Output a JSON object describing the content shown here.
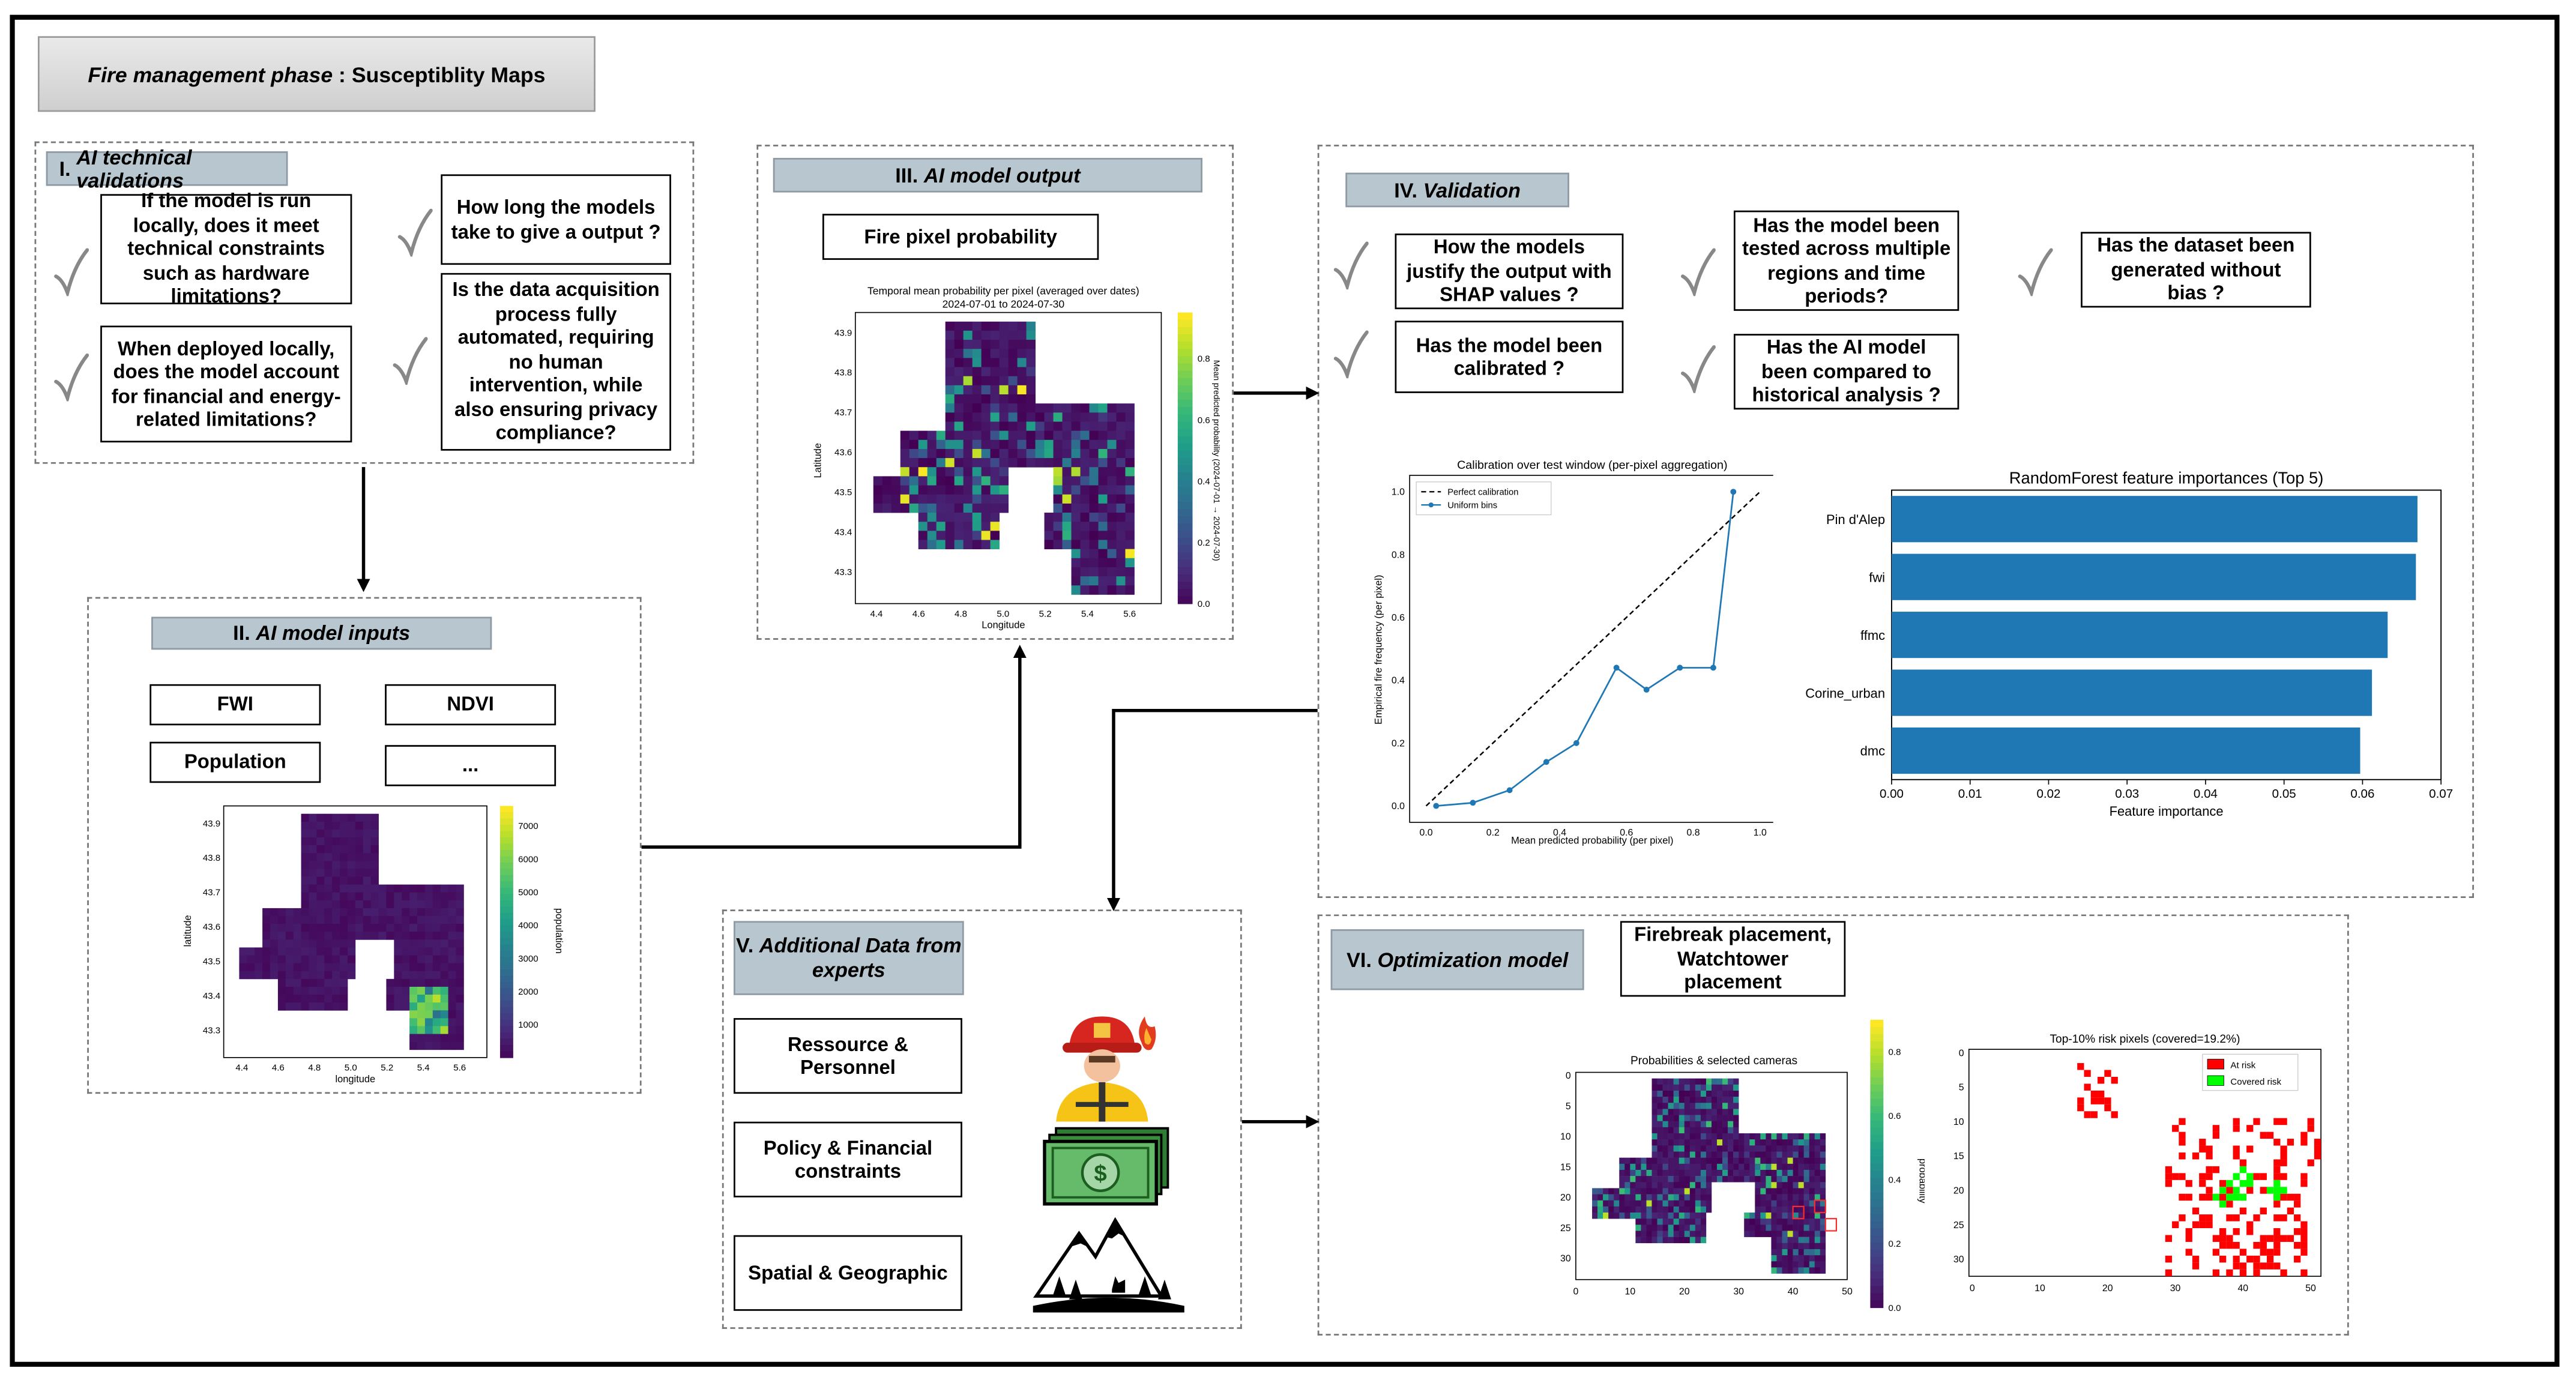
{
  "title": {
    "italic": "Fire management phase",
    "rest": " : Susceptiblity Maps"
  },
  "sections": {
    "s1": {
      "num": "I.",
      "name": "AI technical validations",
      "q1": "If the model is run locally, does it meet technical constraints such as hardware limitations?",
      "q2": "How long the models take to give a output ?",
      "q3": "When deployed locally, does the model account for financial and energy-related limitations?",
      "q4": "Is the data acquisition process fully automated, requiring no human intervention, while also ensuring privacy compliance?"
    },
    "s2": {
      "num": "II.",
      "name": "AI model inputs",
      "b1": "FWI",
      "b2": "NDVI",
      "b3": "Population",
      "b4": "..."
    },
    "s3": {
      "num": "III.",
      "name": "AI model output",
      "box": "Fire pixel probability"
    },
    "s4": {
      "num": "IV.",
      "name": "Validation",
      "q1": "How the models justify the output with SHAP values ?",
      "q2": "Has the model been tested across multiple regions and time periods?",
      "q3": "Has the dataset been generated without bias ?",
      "q4": "Has the model been calibrated ?",
      "q5": "Has the AI model been compared to historical analysis ?"
    },
    "s5": {
      "num": "V.",
      "name": "Additional Data from experts",
      "b1": "Ressource & Personnel",
      "b2": "Policy & Financial constraints",
      "b3": "Spatial & Geographic"
    },
    "s6": {
      "num": "VI.",
      "name": "Optimization model",
      "box": "Firebreak placement, Watchtower placement"
    }
  },
  "icons": [
    "checkmark-icon",
    "firefighter-icon",
    "money-stack-icon",
    "mountain-landscape-icon"
  ],
  "colors": {
    "header_fill": "#b8c6d0",
    "bar": "#1f77b4",
    "line": "#1f77b4",
    "at_risk": "#ff0000",
    "covered": "#00ff00",
    "map_low": "#440154",
    "map_high": "#fde725"
  },
  "chart_data": [
    {
      "id": "population_map",
      "type": "heatmap",
      "xlabel": "longitude",
      "ylabel": "latitude",
      "colorbar_label": "population",
      "x_ticks": [
        "4.4",
        "4.6",
        "4.8",
        "5.0",
        "5.2",
        "5.4",
        "5.6"
      ],
      "y_ticks": [
        "43.9",
        "43.8",
        "43.7",
        "43.6",
        "43.5",
        "43.4",
        "43.3"
      ],
      "colorbar_ticks": [
        "7000",
        "6000",
        "5000",
        "4000",
        "3000",
        "2000",
        "1000"
      ],
      "colorbar_range": [
        0,
        7600
      ],
      "colormap": "viridis"
    },
    {
      "id": "fire_probability_map",
      "type": "heatmap",
      "title": "Temporal mean probability per pixel (averaged over dates)",
      "subtitle": "2024-07-01 to 2024-07-30",
      "xlabel": "Longitude",
      "ylabel": "Latitude",
      "colorbar_label": "Mean predicted probability (2024-07-01 → 2024-07-30)",
      "x_ticks": [
        "4.4",
        "4.6",
        "4.8",
        "5.0",
        "5.2",
        "5.4",
        "5.6"
      ],
      "y_ticks": [
        "43.9",
        "43.8",
        "43.7",
        "43.6",
        "43.5",
        "43.4",
        "43.3"
      ],
      "colorbar_ticks": [
        "0.8",
        "0.6",
        "0.4",
        "0.2",
        "0.0"
      ],
      "colorbar_range": [
        0,
        0.95
      ],
      "colormap": "viridis"
    },
    {
      "id": "calibration_curve",
      "type": "line",
      "title": "Calibration over test window (per-pixel aggregation)",
      "xlabel": "Mean predicted probability (per pixel)",
      "ylabel": "Empirical fire frequency (per pixel)",
      "xlim": [
        0,
        1
      ],
      "ylim": [
        0,
        1
      ],
      "legend": "top-left",
      "x_ticks": [
        "0.0",
        "0.2",
        "0.4",
        "0.6",
        "0.8",
        "1.0"
      ],
      "y_ticks": [
        "1.0",
        "0.8",
        "0.6",
        "0.4",
        "0.2",
        "0.0"
      ],
      "series": [
        {
          "name": "Perfect calibration",
          "style": "dashed",
          "x": [
            0,
            1
          ],
          "y": [
            0,
            1
          ]
        },
        {
          "name": "Uniform bins",
          "style": "solid-marker",
          "x": [
            0.03,
            0.14,
            0.25,
            0.36,
            0.45,
            0.57,
            0.66,
            0.76,
            0.86,
            0.92
          ],
          "y": [
            0.0,
            0.01,
            0.05,
            0.14,
            0.2,
            0.44,
            0.37,
            0.44,
            0.44,
            1.0
          ]
        }
      ]
    },
    {
      "id": "feature_importance",
      "type": "bar",
      "orientation": "horizontal",
      "title": "RandomForest feature importances (Top 5)",
      "xlabel": "Feature importance",
      "categories": [
        "Pin d'Alep",
        "fwi",
        "ffmc",
        "Corine_urban",
        "dmc"
      ],
      "values": [
        0.067,
        0.0668,
        0.0632,
        0.0612,
        0.0597
      ],
      "xlim": [
        0,
        0.07
      ],
      "x_ticks": [
        "0.00",
        "0.01",
        "0.02",
        "0.03",
        "0.04",
        "0.05",
        "0.06",
        "0.07"
      ]
    },
    {
      "id": "camera_map",
      "type": "heatmap",
      "title": "Probabilities & selected cameras",
      "colorbar_label": "probability",
      "x_ticks": [
        "0",
        "10",
        "20",
        "30",
        "40",
        "50"
      ],
      "y_ticks": [
        "0",
        "5",
        "10",
        "15",
        "20",
        "25",
        "30"
      ],
      "colorbar_ticks": [
        "0.8",
        "0.6",
        "0.4",
        "0.2",
        "0.0"
      ],
      "colorbar_range": [
        0,
        0.9
      ],
      "colormap": "viridis"
    },
    {
      "id": "coverage_map",
      "type": "scatter",
      "title": "Top-10% risk pixels (covered=19.2%)",
      "legend": [
        "At risk",
        "Covered risk"
      ],
      "legend_placement": "top-right",
      "x_ticks": [
        "0",
        "10",
        "20",
        "30",
        "40",
        "50"
      ],
      "y_ticks": [
        "0",
        "5",
        "10",
        "15",
        "20",
        "25",
        "30"
      ],
      "xlim": [
        0,
        52
      ],
      "ylim": [
        0,
        33
      ]
    }
  ]
}
